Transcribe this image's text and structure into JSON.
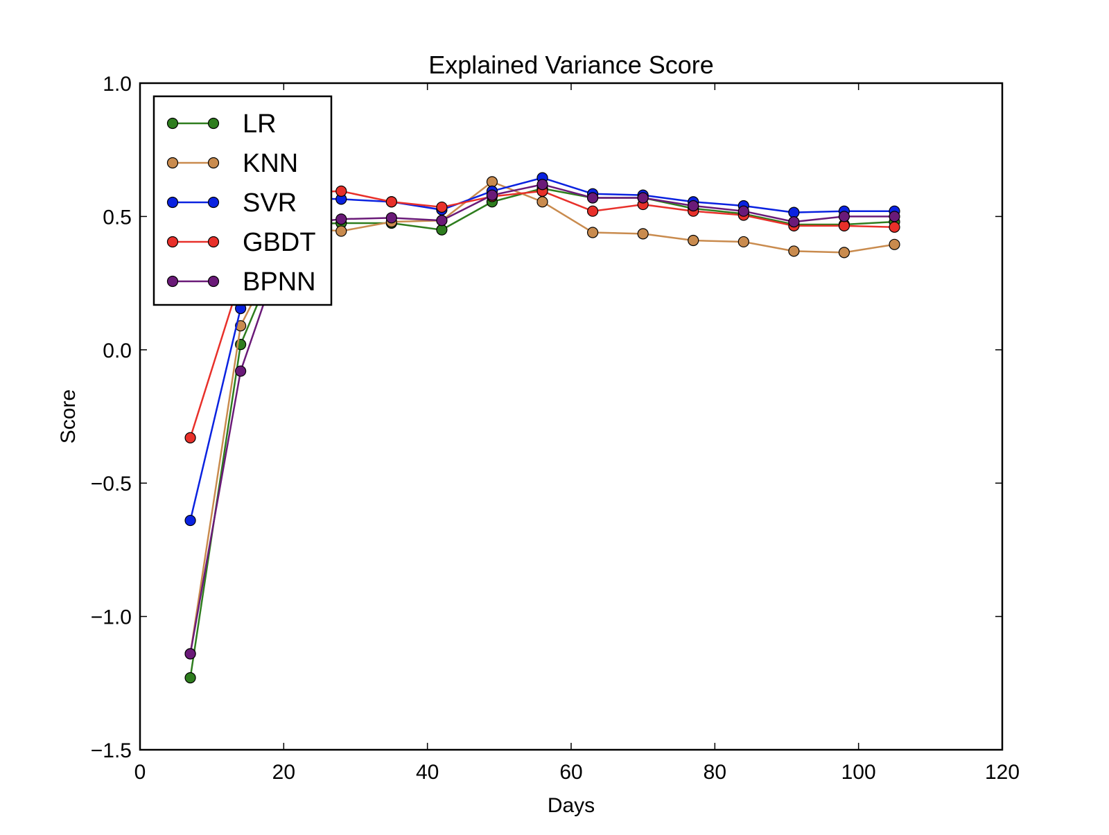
{
  "chart_data": {
    "type": "line",
    "title": "Explained Variance Score",
    "xlabel": "Days",
    "ylabel": "Score",
    "xlim": [
      0,
      120
    ],
    "ylim": [
      -1.5,
      1.0
    ],
    "x_ticks": [
      0,
      20,
      40,
      60,
      80,
      100,
      120
    ],
    "x_tick_labels": [
      "0",
      "20",
      "40",
      "60",
      "80",
      "100",
      "120"
    ],
    "y_ticks": [
      -1.5,
      -1.0,
      -0.5,
      0.0,
      0.5,
      1.0
    ],
    "y_tick_labels": [
      "−1.5",
      "−1.0",
      "−0.5",
      "0.0",
      "0.5",
      "1.0"
    ],
    "grid": false,
    "legend_position": "top-left",
    "x": [
      7,
      14,
      21,
      28,
      35,
      42,
      49,
      56,
      63,
      70,
      77,
      84,
      91,
      98,
      105
    ],
    "series": [
      {
        "name": "LR",
        "color": "#2e7d1e",
        "values": [
          -1.23,
          0.02,
          0.47,
          0.475,
          0.475,
          0.45,
          0.555,
          0.605,
          0.57,
          0.57,
          0.53,
          0.51,
          0.47,
          0.47,
          0.48
        ]
      },
      {
        "name": "KNN",
        "color": "#c98b4e",
        "values": [
          -1.14,
          0.09,
          0.46,
          0.445,
          0.48,
          0.485,
          0.63,
          0.555,
          0.44,
          0.435,
          0.41,
          0.405,
          0.37,
          0.365,
          0.395
        ]
      },
      {
        "name": "SVR",
        "color": "#0a22e0",
        "values": [
          -0.64,
          0.155,
          0.57,
          0.565,
          0.555,
          0.525,
          0.595,
          0.645,
          0.585,
          0.58,
          0.555,
          0.54,
          0.515,
          0.52,
          0.52
        ]
      },
      {
        "name": "GBDT",
        "color": "#e8302a",
        "values": [
          -0.33,
          0.27,
          0.59,
          0.595,
          0.555,
          0.535,
          0.575,
          0.595,
          0.52,
          0.545,
          0.52,
          0.505,
          0.465,
          0.465,
          0.46
        ]
      },
      {
        "name": "BPNN",
        "color": "#6a1a78",
        "values": [
          -1.14,
          -0.08,
          0.47,
          0.49,
          0.495,
          0.485,
          0.58,
          0.62,
          0.57,
          0.57,
          0.54,
          0.52,
          0.48,
          0.5,
          0.5
        ]
      }
    ]
  }
}
